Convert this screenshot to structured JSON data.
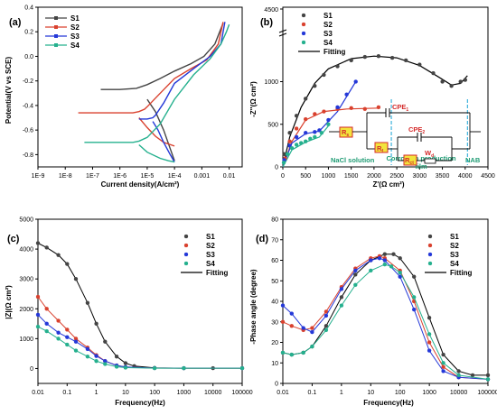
{
  "colors": {
    "S1": "#444444",
    "S2": "#d9412e",
    "S3": "#2438d8",
    "S4": "#25b08e",
    "fit": "#000000",
    "circuit": "#d42a2a",
    "resistor": "#f2e43c",
    "region": "#18a3d6",
    "region_text": "#1f9c74"
  },
  "chart_data": [
    {
      "type": "line",
      "panel_label": "(a)",
      "xlabel": "Current density(A/cm²)",
      "ylabel": "Potential(V vs SCE)",
      "xscale": "log",
      "xlim": [
        1e-09,
        0.03
      ],
      "ylim": [
        -0.9,
        0.4
      ],
      "x_ticks": [
        "1E-9",
        "1E-8",
        "1E-7",
        "1E-6",
        "1E-5",
        "1E-4",
        "0.001",
        "0.01"
      ],
      "y_ticks": [
        "0.4",
        "0.2",
        "0.0",
        "-0.2",
        "-0.4",
        "-0.6",
        "-0.8"
      ],
      "legend": [
        "S1",
        "S2",
        "S3",
        "S4"
      ],
      "series": [
        {
          "name": "S1",
          "x": [
            2e-07,
            1e-06,
            4e-06,
            1e-05,
            3e-05,
            0.0001,
            0.0004,
            0.0012,
            0.003,
            0.0045,
            0.006
          ],
          "y": [
            -0.27,
            -0.27,
            -0.26,
            -0.23,
            -0.18,
            -0.12,
            -0.06,
            0.0,
            0.1,
            0.2,
            0.27
          ]
        },
        {
          "name": "S2",
          "x": [
            3e-08,
            1e-06,
            3e-06,
            5e-06,
            8e-06,
            1e-05,
            3e-05,
            0.0001,
            0.0004,
            0.0015,
            0.004,
            0.006
          ],
          "y": [
            -0.46,
            -0.46,
            -0.46,
            -0.45,
            -0.43,
            -0.41,
            -0.3,
            -0.18,
            -0.1,
            -0.03,
            0.1,
            0.28
          ]
        },
        {
          "name": "S3",
          "x": [
            5e-06,
            1e-05,
            1.6e-05,
            2e-05,
            4e-05,
            0.0001,
            0.0005,
            0.002,
            0.005,
            0.007
          ],
          "y": [
            -0.51,
            -0.51,
            -0.5,
            -0.48,
            -0.38,
            -0.22,
            -0.1,
            0.0,
            0.1,
            0.28
          ]
        },
        {
          "name": "S4",
          "x": [
            5e-08,
            1e-06,
            3e-06,
            5e-06,
            1e-05,
            3e-05,
            0.0001,
            0.0005,
            0.002,
            0.005,
            0.008,
            0.01
          ],
          "y": [
            -0.7,
            -0.7,
            -0.7,
            -0.69,
            -0.66,
            -0.55,
            -0.35,
            -0.15,
            -0.02,
            0.1,
            0.2,
            0.26
          ]
        }
      ],
      "cathodic_series": [
        {
          "name": "S1",
          "x": [
            1e-05,
            2e-05,
            4e-05,
            0.0001
          ],
          "y": [
            -0.35,
            -0.45,
            -0.6,
            -0.85
          ]
        },
        {
          "name": "S2",
          "x": [
            5e-06,
            1e-05,
            2e-05,
            4e-05,
            0.0001
          ],
          "y": [
            -0.5,
            -0.58,
            -0.65,
            -0.7,
            -0.73
          ]
        },
        {
          "name": "S3",
          "x": [
            1.6e-05,
            2.5e-05,
            4e-05,
            7e-05,
            0.0001
          ],
          "y": [
            -0.53,
            -0.6,
            -0.7,
            -0.8,
            -0.86
          ]
        },
        {
          "name": "S4",
          "x": [
            5e-06,
            1e-05,
            3e-05,
            6e-05,
            0.0001
          ],
          "y": [
            -0.72,
            -0.78,
            -0.83,
            -0.85,
            -0.86
          ]
        }
      ]
    },
    {
      "type": "scatter",
      "panel_label": "(b)",
      "xlabel": "Z'(Ω cm²)",
      "ylabel": "-Z''(Ω cm²)",
      "xlim": [
        0,
        4500
      ],
      "ylim": [
        0,
        1500
      ],
      "axis_break": true,
      "break_top_tick": "4500",
      "x_ticks": [
        "0",
        "500",
        "1000",
        "1500",
        "2000",
        "2500",
        "3000",
        "3500",
        "4000",
        "4500"
      ],
      "y_ticks": [
        "0",
        "500",
        "1000"
      ],
      "legend": [
        "S1",
        "S2",
        "S3",
        "S4",
        "Fitting"
      ],
      "series": [
        {
          "name": "S1",
          "x": [
            30,
            150,
            300,
            500,
            700,
            900,
            1200,
            1500,
            1800,
            2100,
            2400,
            2700,
            3000,
            3300,
            3500,
            3700,
            3900,
            4000
          ],
          "y": [
            150,
            400,
            600,
            800,
            950,
            1080,
            1180,
            1250,
            1290,
            1300,
            1280,
            1250,
            1200,
            1100,
            1000,
            950,
            1000,
            1020
          ]
        },
        {
          "name": "S2",
          "x": [
            50,
            150,
            300,
            500,
            700,
            900,
            1200,
            1500,
            1800,
            2100
          ],
          "y": [
            100,
            300,
            450,
            560,
            620,
            650,
            680,
            690,
            680,
            700
          ]
        },
        {
          "name": "S3",
          "x": [
            30,
            150,
            300,
            500,
            700,
            800,
            1000,
            1200,
            1400,
            1600
          ],
          "y": [
            80,
            250,
            350,
            400,
            410,
            430,
            550,
            700,
            850,
            1000
          ]
        },
        {
          "name": "S4",
          "x": [
            20,
            100,
            200,
            300,
            400,
            500,
            600,
            700,
            850,
            1000
          ],
          "y": [
            50,
            150,
            220,
            260,
            280,
            300,
            330,
            350,
            400,
            500
          ]
        }
      ],
      "fit_curves": [
        {
          "x": [
            0,
            150,
            400,
            700,
            1000,
            1500,
            2000,
            2500,
            3000,
            3400,
            3700,
            3900,
            4050
          ],
          "y": [
            0,
            350,
            700,
            980,
            1150,
            1270,
            1300,
            1280,
            1190,
            1060,
            960,
            980,
            1070
          ]
        },
        {
          "x": [
            0,
            200,
            500,
            900,
            1400,
            2100
          ],
          "y": [
            0,
            300,
            550,
            650,
            680,
            690
          ]
        },
        {
          "x": [
            0,
            200,
            500,
            800,
            1200,
            1600
          ],
          "y": [
            0,
            280,
            390,
            420,
            650,
            1000
          ]
        },
        {
          "x": [
            0,
            200,
            500,
            800,
            1000
          ],
          "y": [
            0,
            200,
            290,
            350,
            480
          ]
        }
      ],
      "circuit": {
        "Rs": "R",
        "Rs_sub": "s",
        "Rf": "R",
        "Rf_sub": "f",
        "Rct": "R",
        "Rct_sub": "ct",
        "CPE1": "CPE",
        "CPE1_sub": "1",
        "CPE2": "CPE",
        "CPE2_sub": "2",
        "Wd": "W",
        "Wd_sub": "d"
      },
      "region_labels": [
        "NaCl solution",
        "Corrosion production",
        "film",
        "NAB"
      ]
    },
    {
      "type": "scatter",
      "panel_label": "(c)",
      "xlabel": "Frequency(Hz)",
      "ylabel": "|Z|(Ω cm²)",
      "xscale": "log",
      "xlim": [
        0.01,
        100000
      ],
      "ylim": [
        -500,
        5000
      ],
      "x_ticks": [
        "0.01",
        "0.1",
        "1",
        "10",
        "100",
        "1000",
        "10000",
        "100000"
      ],
      "y_ticks": [
        "0",
        "1000",
        "2000",
        "3000",
        "4000",
        "5000"
      ],
      "legend": [
        "S1",
        "S2",
        "S3",
        "S4",
        "Fitting"
      ],
      "series": [
        {
          "name": "S1",
          "x": [
            0.01,
            0.02,
            0.05,
            0.1,
            0.2,
            0.5,
            1,
            2,
            5,
            10,
            20,
            100,
            1000,
            10000,
            100000
          ],
          "y": [
            4200,
            4050,
            3800,
            3500,
            3000,
            2200,
            1500,
            900,
            400,
            180,
            80,
            20,
            10,
            10,
            10
          ]
        },
        {
          "name": "S2",
          "x": [
            0.01,
            0.02,
            0.05,
            0.1,
            0.2,
            0.5,
            1,
            2,
            5,
            10,
            100,
            1000,
            100000
          ],
          "y": [
            2400,
            2000,
            1600,
            1300,
            1000,
            700,
            450,
            250,
            100,
            50,
            15,
            10,
            10
          ]
        },
        {
          "name": "S3",
          "x": [
            0.01,
            0.02,
            0.05,
            0.1,
            0.2,
            0.5,
            1,
            2,
            5,
            10,
            100,
            1000,
            100000
          ],
          "y": [
            1800,
            1500,
            1200,
            1050,
            900,
            650,
            420,
            250,
            100,
            50,
            15,
            10,
            10
          ]
        },
        {
          "name": "S4",
          "x": [
            0.01,
            0.02,
            0.05,
            0.1,
            0.2,
            0.5,
            1,
            2,
            5,
            10,
            100,
            1000,
            100000
          ],
          "y": [
            1400,
            1250,
            1000,
            800,
            600,
            400,
            250,
            150,
            60,
            30,
            12,
            10,
            10
          ]
        }
      ]
    },
    {
      "type": "scatter",
      "panel_label": "(d)",
      "xlabel": "Frequency(Hz)",
      "ylabel": "-Phase angle (degree)",
      "xscale": "log",
      "xlim": [
        0.01,
        100000
      ],
      "ylim": [
        0,
        80
      ],
      "x_ticks": [
        "0.01",
        "0.1",
        "1",
        "10",
        "100",
        "1000",
        "10000",
        "100000"
      ],
      "y_ticks": [
        "0",
        "10",
        "20",
        "30",
        "40",
        "50",
        "60",
        "70",
        "80"
      ],
      "legend": [
        "S1",
        "S2",
        "S3",
        "S4",
        "Fitting"
      ],
      "series": [
        {
          "name": "S1",
          "x": [
            0.01,
            0.02,
            0.05,
            0.1,
            0.3,
            1,
            3,
            10,
            30,
            60,
            100,
            300,
            1000,
            3000,
            10000,
            30000,
            100000
          ],
          "y": [
            15,
            14,
            15,
            18,
            28,
            42,
            53,
            60,
            63,
            63,
            61,
            52,
            32,
            14,
            6,
            4,
            4
          ]
        },
        {
          "name": "S2",
          "x": [
            0.01,
            0.02,
            0.05,
            0.1,
            0.3,
            1,
            3,
            10,
            20,
            30,
            100,
            300,
            1000,
            3000,
            10000,
            100000
          ],
          "y": [
            30,
            28,
            26,
            27,
            35,
            47,
            56,
            61,
            62,
            61,
            55,
            40,
            20,
            8,
            3,
            2
          ]
        },
        {
          "name": "S3",
          "x": [
            0.01,
            0.02,
            0.05,
            0.1,
            0.3,
            1,
            3,
            10,
            20,
            30,
            100,
            300,
            1000,
            3000,
            10000,
            100000
          ],
          "y": [
            38,
            34,
            27,
            25,
            33,
            46,
            55,
            60,
            61,
            60,
            52,
            36,
            16,
            6,
            3,
            2
          ]
        },
        {
          "name": "S4",
          "x": [
            0.01,
            0.02,
            0.05,
            0.1,
            0.3,
            1,
            3,
            10,
            30,
            50,
            100,
            300,
            1000,
            3000,
            10000,
            100000
          ],
          "y": [
            15,
            14,
            15,
            18,
            26,
            38,
            48,
            55,
            58,
            57,
            54,
            42,
            24,
            10,
            4,
            2
          ]
        }
      ]
    }
  ]
}
